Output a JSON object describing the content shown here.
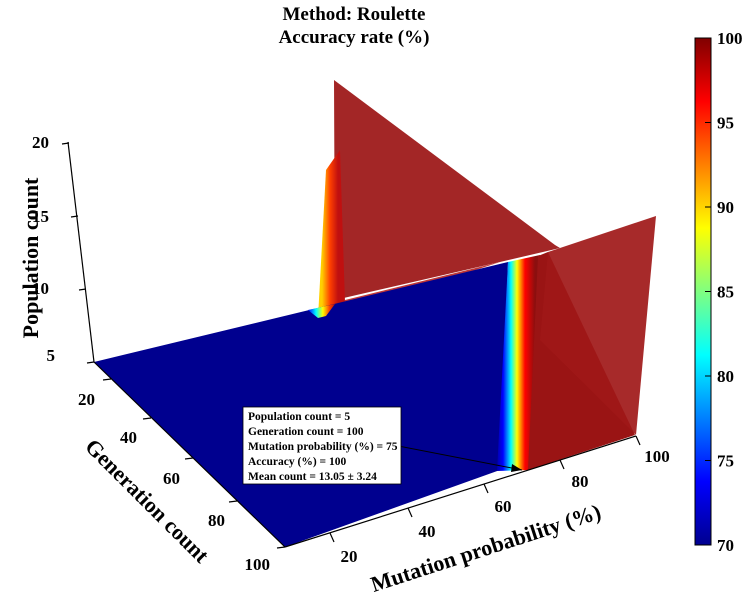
{
  "chart_data": {
    "type": "surface3d",
    "title": [
      "Method: Roulette",
      "Accuracy rate (%)"
    ],
    "xlabel": "Mutation probability (%)",
    "ylabel": "Generation count",
    "zlabel": "Population count",
    "x_ticks": [
      "20",
      "40",
      "60",
      "80",
      "100"
    ],
    "y_ticks": [
      "20",
      "40",
      "60",
      "80",
      "100"
    ],
    "z_ticks": [
      "5",
      "10",
      "15",
      "20"
    ],
    "xlim": [
      5,
      100
    ],
    "ylim": [
      5,
      100
    ],
    "zlim": [
      5,
      20
    ],
    "colorbar": {
      "min": 70,
      "max": 100,
      "ticks": [
        "70",
        "75",
        "80",
        "85",
        "90",
        "95",
        "100"
      ],
      "colormap": "jet"
    },
    "slices": [
      {
        "plane": "population = 5",
        "description_values": {
          "accuracy_below_transition": 70,
          "accuracy_above_transition": 100,
          "transition_mutation_probability": 72
        }
      },
      {
        "plane": "mutation probability = 100",
        "accuracy": 100
      },
      {
        "plane": "generation count = 5",
        "accuracy_below_transition": 70,
        "accuracy_above_transition": 100
      }
    ],
    "annotation": {
      "lines": [
        "Population count = 5",
        "Generation count = 100",
        "Mutation probability (%) = 75",
        "Accuracy (%) = 100",
        "Mean count = 13.05 ± 3.24"
      ]
    }
  }
}
